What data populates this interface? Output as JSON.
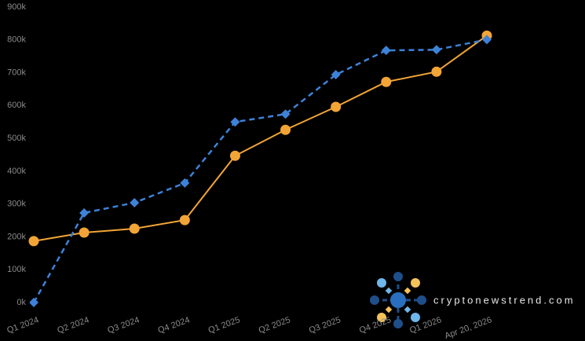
{
  "chart_data": {
    "type": "line",
    "categories": [
      "Q1 2024",
      "Q2 2024",
      "Q3 2024",
      "Q4 2024",
      "Q1 2025",
      "Q2 2025",
      "Q3 2025",
      "Q4 2025",
      "Q1 2026",
      "Apr 20, 2026"
    ],
    "series": [
      {
        "color": "#f2a536",
        "marker": "circle",
        "dashed": false,
        "values": [
          187000,
          213000,
          225000,
          251000,
          447000,
          526000,
          596000,
          672000,
          703000,
          813000
        ]
      },
      {
        "color": "#3d82d8",
        "marker": "diamond",
        "dashed": true,
        "values": [
          0,
          273000,
          304000,
          364000,
          550000,
          574000,
          694000,
          768000,
          770000,
          801000
        ]
      }
    ],
    "ylim": [
      0,
      900000
    ],
    "yticks": [
      {
        "value": 0,
        "label": "0k"
      },
      {
        "value": 100000,
        "label": "100k"
      },
      {
        "value": 200000,
        "label": "200k"
      },
      {
        "value": 300000,
        "label": "300k"
      },
      {
        "value": 400000,
        "label": "400k"
      },
      {
        "value": 500000,
        "label": "500k"
      },
      {
        "value": 600000,
        "label": "600k"
      },
      {
        "value": 700000,
        "label": "700k"
      },
      {
        "value": 800000,
        "label": "800k"
      },
      {
        "value": 900000,
        "label": "900k"
      }
    ],
    "grid": false,
    "watermark": "cryptonewstrend.com"
  }
}
